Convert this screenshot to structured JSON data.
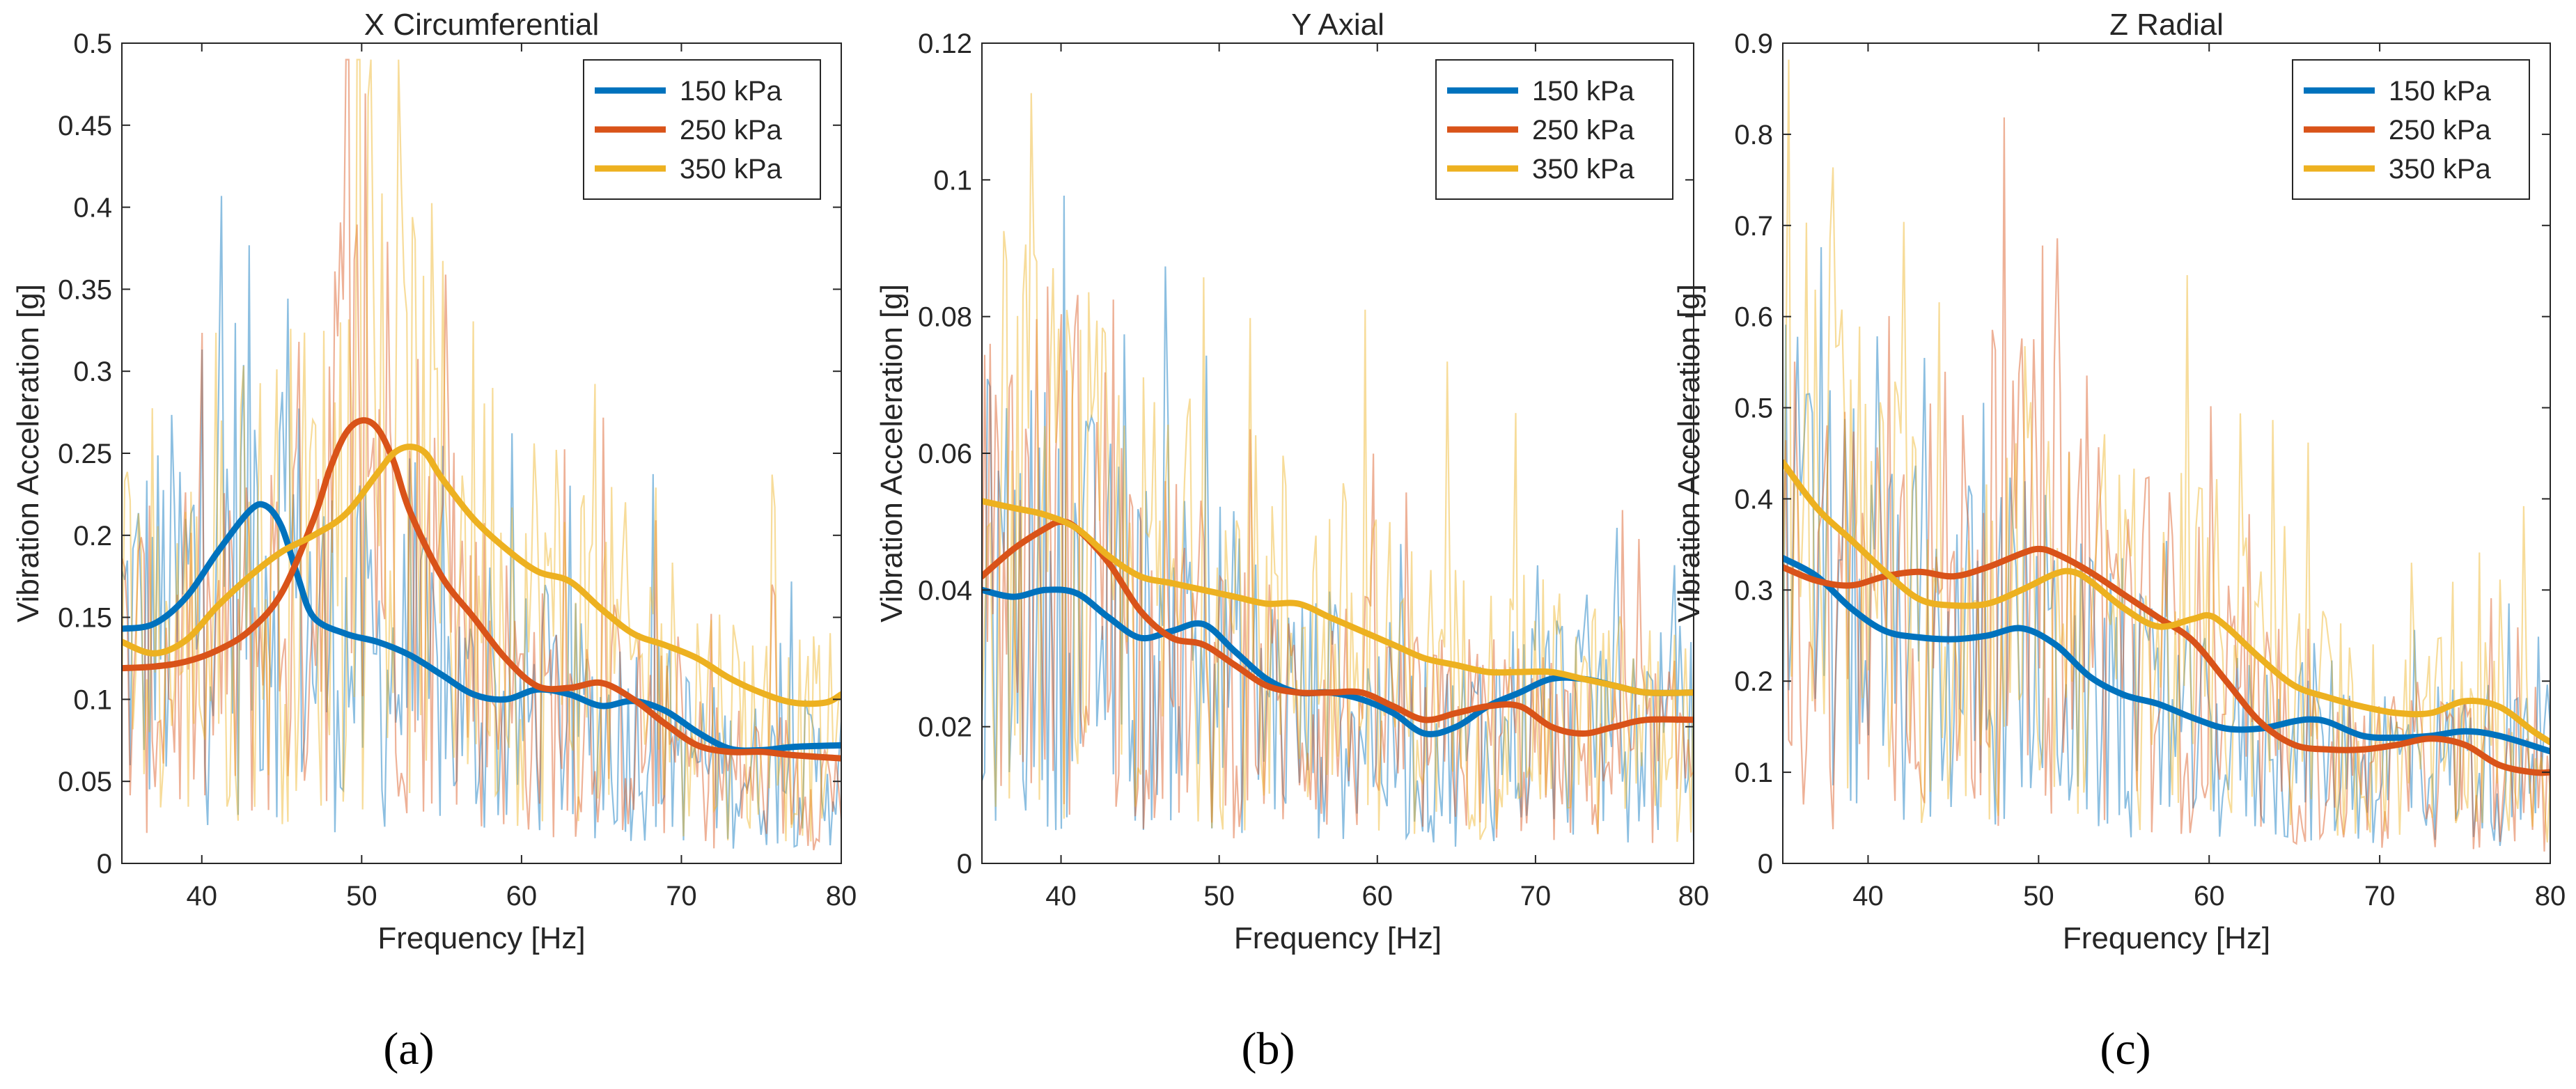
{
  "figure": {
    "panel_labels": [
      "(a)",
      "(b)",
      "(c)"
    ],
    "colors": {
      "s150": "#0072BD",
      "s250": "#D95319",
      "s350": "#EDB120"
    }
  },
  "chart_data": [
    {
      "type": "line",
      "title": "X Circumferential",
      "xlabel": "Frequency [Hz]",
      "ylabel": "Vibration Acceleration [g]",
      "xlim": [
        35,
        80
      ],
      "ylim": [
        0,
        0.5
      ],
      "xticks": [
        40,
        50,
        60,
        70,
        80
      ],
      "xtick_labels": [
        "40",
        "50",
        "60",
        "70",
        "80"
      ],
      "yticks": [
        0,
        0.05,
        0.1,
        0.15,
        0.2,
        0.25,
        0.3,
        0.35,
        0.4,
        0.45,
        0.5
      ],
      "ytick_labels": [
        "0",
        "0.05",
        "0.1",
        "0.15",
        "0.2",
        "0.25",
        "0.3",
        "0.35",
        "0.4",
        "0.45",
        "0.5"
      ],
      "legend": {
        "location": "top-right",
        "entries": [
          "150 kPa",
          "250 kPa",
          "350 kPa"
        ]
      },
      "series": [
        {
          "name": "150 kPa",
          "color": "#0072BD",
          "x": [
            35,
            37,
            39,
            41,
            43,
            44,
            45,
            46,
            47,
            49,
            51,
            53,
            55,
            57,
            59,
            61,
            63,
            65,
            67,
            69,
            71,
            73,
            75,
            77,
            80
          ],
          "y": [
            0.143,
            0.146,
            0.162,
            0.19,
            0.215,
            0.218,
            0.205,
            0.175,
            0.15,
            0.14,
            0.135,
            0.127,
            0.115,
            0.103,
            0.1,
            0.106,
            0.103,
            0.096,
            0.099,
            0.093,
            0.08,
            0.07,
            0.069,
            0.071,
            0.072
          ]
        },
        {
          "name": "250 kPa",
          "color": "#D95319",
          "x": [
            35,
            37,
            39,
            41,
            43,
            45,
            47,
            48,
            49,
            50,
            51,
            52,
            53,
            55,
            57,
            59,
            61,
            63,
            65,
            67,
            69,
            71,
            73,
            75,
            77,
            80
          ],
          "y": [
            0.119,
            0.12,
            0.123,
            0.13,
            0.142,
            0.165,
            0.21,
            0.24,
            0.262,
            0.27,
            0.265,
            0.245,
            0.215,
            0.175,
            0.15,
            0.125,
            0.108,
            0.107,
            0.11,
            0.1,
            0.085,
            0.072,
            0.068,
            0.068,
            0.066,
            0.064
          ]
        },
        {
          "name": "350 kPa",
          "color": "#EDB120",
          "x": [
            35,
            37,
            39,
            41,
            43,
            45,
            47,
            49,
            51,
            52,
            53,
            54,
            55,
            57,
            59,
            61,
            63,
            65,
            67,
            69,
            71,
            73,
            75,
            77,
            79,
            80
          ],
          "y": [
            0.135,
            0.128,
            0.136,
            0.157,
            0.175,
            0.19,
            0.2,
            0.213,
            0.238,
            0.25,
            0.254,
            0.25,
            0.235,
            0.21,
            0.192,
            0.178,
            0.172,
            0.155,
            0.14,
            0.133,
            0.125,
            0.113,
            0.104,
            0.098,
            0.098,
            0.103
          ]
        }
      ]
    },
    {
      "type": "line",
      "title": "Y Axial",
      "xlabel": "Frequency [Hz]",
      "ylabel": "Vibration Acceleration [g]",
      "xlim": [
        35,
        80
      ],
      "ylim": [
        0,
        0.12
      ],
      "xticks": [
        40,
        50,
        60,
        70,
        80
      ],
      "xtick_labels": [
        "40",
        "50",
        "60",
        "70",
        "80"
      ],
      "yticks": [
        0,
        0.02,
        0.04,
        0.06,
        0.08,
        0.1,
        0.12
      ],
      "ytick_labels": [
        "0",
        "0.02",
        "0.04",
        "0.06",
        "0.08",
        "0.1",
        "0.12"
      ],
      "legend": {
        "location": "top-right",
        "entries": [
          "150 kPa",
          "250 kPa",
          "350 kPa"
        ]
      },
      "series": [
        {
          "name": "150 kPa",
          "color": "#0072BD",
          "x": [
            35,
            37,
            39,
            41,
            43,
            45,
            47,
            49,
            51,
            53,
            55,
            57,
            59,
            61,
            63,
            65,
            67,
            69,
            71,
            73,
            75,
            77,
            80
          ],
          "y": [
            0.04,
            0.039,
            0.04,
            0.0395,
            0.036,
            0.033,
            0.034,
            0.035,
            0.031,
            0.027,
            0.025,
            0.025,
            0.024,
            0.022,
            0.019,
            0.02,
            0.023,
            0.025,
            0.027,
            0.027,
            0.026,
            0.025,
            0.025
          ]
        },
        {
          "name": "250 kPa",
          "color": "#D95319",
          "x": [
            35,
            37,
            39,
            40,
            41,
            43,
            45,
            47,
            49,
            51,
            53,
            55,
            57,
            59,
            61,
            63,
            65,
            67,
            69,
            71,
            73,
            75,
            77,
            80
          ],
          "y": [
            0.042,
            0.046,
            0.049,
            0.05,
            0.049,
            0.044,
            0.037,
            0.033,
            0.032,
            0.029,
            0.026,
            0.025,
            0.025,
            0.025,
            0.023,
            0.021,
            0.022,
            0.023,
            0.023,
            0.02,
            0.019,
            0.02,
            0.021,
            0.021
          ]
        },
        {
          "name": "350 kPa",
          "color": "#EDB120",
          "x": [
            35,
            37,
            39,
            41,
            43,
            45,
            47,
            49,
            51,
            53,
            55,
            57,
            59,
            61,
            63,
            65,
            67,
            69,
            71,
            73,
            75,
            77,
            80
          ],
          "y": [
            0.053,
            0.052,
            0.051,
            0.049,
            0.045,
            0.042,
            0.041,
            0.04,
            0.039,
            0.038,
            0.038,
            0.036,
            0.034,
            0.032,
            0.03,
            0.029,
            0.028,
            0.028,
            0.028,
            0.027,
            0.026,
            0.025,
            0.025
          ]
        }
      ]
    },
    {
      "type": "line",
      "title": "Z Radial",
      "xlabel": "Frequency [Hz]",
      "ylabel": "Vibration Acceleration [g]",
      "xlim": [
        35,
        80
      ],
      "ylim": [
        0,
        0.9
      ],
      "xticks": [
        40,
        50,
        60,
        70,
        80
      ],
      "xtick_labels": [
        "40",
        "50",
        "60",
        "70",
        "80"
      ],
      "yticks": [
        0,
        0.1,
        0.2,
        0.3,
        0.4,
        0.5,
        0.6,
        0.7,
        0.8,
        0.9
      ],
      "ytick_labels": [
        "0",
        "0.1",
        "0.2",
        "0.3",
        "0.4",
        "0.5",
        "0.6",
        "0.7",
        "0.8",
        "0.9"
      ],
      "legend": {
        "location": "top-right",
        "entries": [
          "150 kPa",
          "250 kPa",
          "350 kPa"
        ]
      },
      "series": [
        {
          "name": "150 kPa",
          "color": "#0072BD",
          "x": [
            35,
            37,
            39,
            41,
            43,
            45,
            47,
            49,
            51,
            53,
            55,
            57,
            59,
            61,
            63,
            65,
            66,
            67,
            69,
            71,
            73,
            75,
            77,
            80
          ],
          "y": [
            0.335,
            0.315,
            0.28,
            0.255,
            0.248,
            0.246,
            0.25,
            0.258,
            0.24,
            0.205,
            0.185,
            0.175,
            0.16,
            0.148,
            0.148,
            0.156,
            0.158,
            0.155,
            0.14,
            0.138,
            0.14,
            0.145,
            0.14,
            0.123
          ]
        },
        {
          "name": "250 kPa",
          "color": "#D95319",
          "x": [
            35,
            37,
            39,
            41,
            43,
            45,
            47,
            49,
            50,
            51,
            53,
            55,
            57,
            59,
            61,
            63,
            65,
            67,
            69,
            71,
            73,
            75,
            77,
            79,
            80
          ],
          "y": [
            0.325,
            0.31,
            0.305,
            0.315,
            0.32,
            0.315,
            0.325,
            0.34,
            0.345,
            0.34,
            0.32,
            0.295,
            0.27,
            0.245,
            0.2,
            0.155,
            0.13,
            0.125,
            0.125,
            0.13,
            0.137,
            0.13,
            0.108,
            0.1,
            0.1
          ]
        },
        {
          "name": "350 kPa",
          "color": "#EDB120",
          "x": [
            35,
            37,
            39,
            41,
            43,
            45,
            47,
            49,
            51,
            52,
            53,
            55,
            57,
            59,
            60,
            61,
            63,
            65,
            67,
            69,
            71,
            73,
            75,
            77,
            79,
            80
          ],
          "y": [
            0.44,
            0.39,
            0.355,
            0.32,
            0.29,
            0.283,
            0.285,
            0.3,
            0.318,
            0.32,
            0.31,
            0.28,
            0.26,
            0.268,
            0.272,
            0.26,
            0.225,
            0.195,
            0.182,
            0.172,
            0.165,
            0.165,
            0.178,
            0.172,
            0.145,
            0.133
          ]
        }
      ]
    }
  ]
}
